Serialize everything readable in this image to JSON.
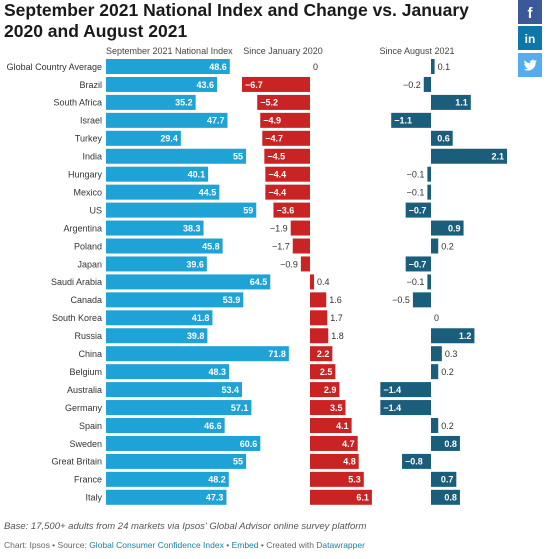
{
  "title": "September 2021 National Index and Change vs. January 2020 and August 2021",
  "social": {
    "facebook_icon": "facebook-icon",
    "linkedin_icon": "linkedin-icon",
    "twitter_icon": "twitter-icon",
    "facebook_color": "#3b5998",
    "linkedin_color": "#0e76a8",
    "twitter_color": "#55acee",
    "facebook_glyph": "f",
    "linkedin_glyph": "in"
  },
  "colors": {
    "index_bar": "#1fa2d6",
    "negative_change": "#c92323",
    "positive_change": "#1b5e7b"
  },
  "chart_data": [
    {
      "type": "bar",
      "title": "September 2021 National Index",
      "categories": [
        "Global Country Average",
        "Brazil",
        "South Africa",
        "Israel",
        "Turkey",
        "India",
        "Hungary",
        "Mexico",
        "US",
        "Argentina",
        "Poland",
        "Japan",
        "Saudi Arabia",
        "Canada",
        "South Korea",
        "Russia",
        "China",
        "Belgium",
        "Australia",
        "Germany",
        "Spain",
        "Sweden",
        "Great Britain",
        "France",
        "Italy"
      ],
      "values": [
        48.6,
        43.6,
        35.2,
        47.7,
        29.4,
        55,
        40.1,
        44.5,
        59,
        38.3,
        45.8,
        39.6,
        64.5,
        53.9,
        41.8,
        39.8,
        71.8,
        48.3,
        53.4,
        57.1,
        46.6,
        60.6,
        55,
        48.2,
        47.3
      ],
      "value_labels": [
        "48.6",
        "43.6",
        "35.2",
        "47.7",
        "29.4",
        "55",
        "40.1",
        "44.5",
        "59",
        "38.3",
        "45.8",
        "39.6",
        "64.5",
        "53.9",
        "41.8",
        "39.8",
        "71.8",
        "48.3",
        "53.4",
        "57.1",
        "46.6",
        "60.6",
        "55",
        "48.2",
        "47.3"
      ],
      "orientation": "horizontal",
      "xlim": [
        0,
        75
      ]
    },
    {
      "type": "bar",
      "title": "Since January 2020",
      "categories": [
        "Global Country Average",
        "Brazil",
        "South Africa",
        "Israel",
        "Turkey",
        "India",
        "Hungary",
        "Mexico",
        "US",
        "Argentina",
        "Poland",
        "Japan",
        "Saudi Arabia",
        "Canada",
        "South Korea",
        "Russia",
        "China",
        "Belgium",
        "Australia",
        "Germany",
        "Spain",
        "Sweden",
        "Great Britain",
        "France",
        "Italy"
      ],
      "values": [
        0,
        -6.7,
        -5.2,
        -4.9,
        -4.7,
        -4.5,
        -4.4,
        -4.4,
        -3.6,
        -1.9,
        -1.7,
        -0.9,
        0.4,
        1.6,
        1.7,
        1.8,
        2.2,
        2.5,
        2.9,
        3.5,
        4.1,
        4.7,
        4.8,
        5.3,
        6.1
      ],
      "value_labels": [
        "0",
        "−6.7",
        "−5.2",
        "−4.9",
        "−4.7",
        "−4.5",
        "−4.4",
        "−4.4",
        "−3.6",
        "−1.9",
        "−1.7",
        "−0.9",
        "0.4",
        "1.6",
        "1.7",
        "1.8",
        "2.2",
        "2.5",
        "2.9",
        "3.5",
        "4.1",
        "4.7",
        "4.8",
        "5.3",
        "6.1"
      ],
      "orientation": "horizontal",
      "xlim": [
        -6.7,
        6.1
      ]
    },
    {
      "type": "bar",
      "title": "Since August 2021",
      "categories": [
        "Global Country Average",
        "Brazil",
        "South Africa",
        "Israel",
        "Turkey",
        "India",
        "Hungary",
        "Mexico",
        "US",
        "Argentina",
        "Poland",
        "Japan",
        "Saudi Arabia",
        "Canada",
        "South Korea",
        "Russia",
        "China",
        "Belgium",
        "Australia",
        "Germany",
        "Spain",
        "Sweden",
        "Great Britain",
        "France",
        "Italy"
      ],
      "values": [
        0.1,
        -0.2,
        1.1,
        -1.1,
        0.6,
        2.1,
        -0.1,
        -0.1,
        -0.7,
        0.9,
        0.2,
        -0.7,
        -0.1,
        -0.5,
        0,
        1.2,
        0.3,
        0.2,
        -1.4,
        -1.4,
        0.2,
        0.8,
        -0.8,
        0.7,
        0.8
      ],
      "value_labels": [
        "0.1",
        "−0.2",
        "1.1",
        "−1.1",
        "0.6",
        "2.1",
        "−0.1",
        "−0.1",
        "−0.7",
        "0.9",
        "0.2",
        "−0.7",
        "−0.1",
        "−0.5",
        "0",
        "1.2",
        "0.3",
        "0.2",
        "−1.4",
        "−1.4",
        "0.2",
        "0.8",
        "−0.8",
        "0.7",
        "0.8"
      ],
      "orientation": "horizontal",
      "xlim": [
        -1.4,
        2.1
      ]
    }
  ],
  "footer": {
    "note": "Base: 17,500+ adults from 24 markets via Ipsos' Global Advisor online survey platform",
    "chart_by": "Chart: Ipsos • Source: ",
    "source_link": "Global Consumer Confidence Index",
    "sep1": " • ",
    "embed_link": "Embed",
    "sep2": " • Created with ",
    "created_link": "Datawrapper"
  }
}
